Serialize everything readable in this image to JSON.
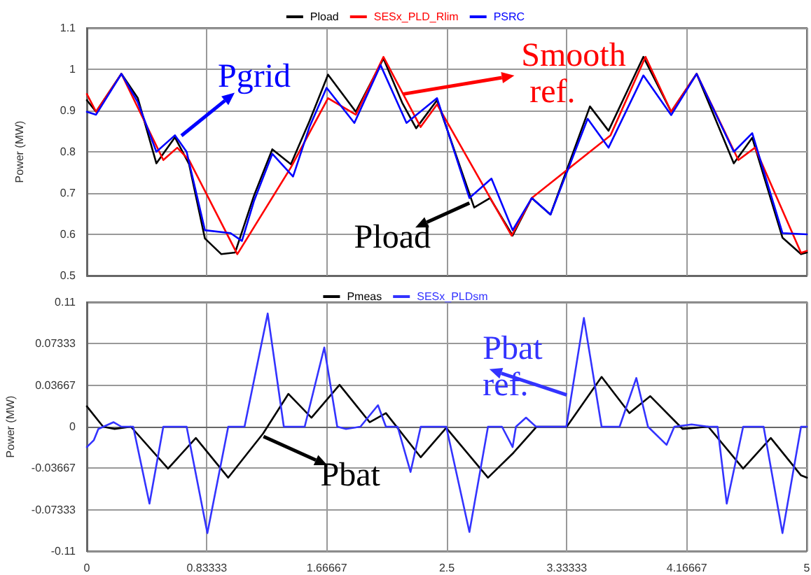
{
  "chart_data": [
    {
      "type": "line",
      "ylabel": "Power (MW)",
      "legend": "top",
      "grid": true,
      "marker": "none",
      "tick_labels": "y",
      "xlim": [
        0,
        5
      ],
      "xticks": [
        0,
        0.83333,
        1.66667,
        2.5,
        3.33333,
        4.16667,
        5
      ],
      "ylim": [
        0.5,
        1.1
      ],
      "yticks": [
        0.5,
        0.6,
        0.7,
        0.8,
        0.9,
        1,
        1.1
      ],
      "annotations": [
        {
          "text": "Pgrid",
          "x": 0.657,
          "y": 0.839
        },
        {
          "text": "Smooth ref.",
          "x": 2.2,
          "y": 0.94
        },
        {
          "text": "Pload",
          "x": 2.657,
          "y": 0.676
        }
      ],
      "series": [
        {
          "name": "Pload",
          "color": "#000000",
          "x": [
            0,
            0.064,
            0.24,
            0.354,
            0.483,
            0.612,
            0.71,
            0.82,
            0.934,
            1.03,
            1.16,
            1.288,
            1.417,
            1.546,
            1.675,
            1.868,
            2.06,
            2.19,
            2.287,
            2.432,
            2.69,
            2.8,
            2.957,
            3.09,
            3.22,
            3.494,
            3.623,
            3.865,
            4.058,
            4.235,
            4.493,
            4.621,
            4.831,
            4.96,
            5
          ],
          "values": [
            0.925,
            0.897,
            0.989,
            0.93,
            0.772,
            0.835,
            0.77,
            0.59,
            0.552,
            0.556,
            0.693,
            0.806,
            0.77,
            0.874,
            0.987,
            0.897,
            1.026,
            0.919,
            0.857,
            0.925,
            0.665,
            0.688,
            0.597,
            0.688,
            0.648,
            0.91,
            0.851,
            1.03,
            0.897,
            0.989,
            0.772,
            0.834,
            0.592,
            0.552,
            0.556
          ]
        },
        {
          "name": "SESx_PLD_Rlim",
          "color": "#ff0000",
          "x": [
            0,
            0.064,
            0.24,
            0.531,
            0.628,
            0.71,
            1.045,
            1.417,
            1.675,
            1.868,
            2.06,
            2.318,
            2.432,
            2.95,
            3.09,
            3.637,
            3.88,
            4.058,
            4.235,
            4.525,
            4.64,
            4.96,
            5
          ],
          "values": [
            0.94,
            0.897,
            0.989,
            0.78,
            0.81,
            0.78,
            0.552,
            0.762,
            0.93,
            0.89,
            1.03,
            0.86,
            0.915,
            0.597,
            0.688,
            0.84,
            1.03,
            0.897,
            0.989,
            0.78,
            0.81,
            0.555,
            0.56
          ]
        },
        {
          "name": "PSRC",
          "color": "#0000ff",
          "x": [
            0,
            0.064,
            0.24,
            0.354,
            0.483,
            0.612,
            0.693,
            0.82,
            0.998,
            1.077,
            1.16,
            1.288,
            1.432,
            1.546,
            1.665,
            1.858,
            2.04,
            2.22,
            2.432,
            2.657,
            2.81,
            2.957,
            3.09,
            3.22,
            3.478,
            3.623,
            3.865,
            4.058,
            4.235,
            4.493,
            4.621,
            4.831,
            5
          ],
          "values": [
            0.897,
            0.89,
            0.989,
            0.92,
            0.8,
            0.84,
            0.8,
            0.61,
            0.603,
            0.584,
            0.68,
            0.795,
            0.74,
            0.86,
            0.955,
            0.87,
            1.01,
            0.87,
            0.93,
            0.688,
            0.735,
            0.61,
            0.688,
            0.648,
            0.88,
            0.81,
            0.985,
            0.889,
            0.989,
            0.8,
            0.845,
            0.603,
            0.6
          ]
        }
      ]
    },
    {
      "type": "line",
      "ylabel": "Power (MW)",
      "legend": "top",
      "grid": true,
      "marker": "none",
      "xlim": [
        0,
        5
      ],
      "xticks": [
        0,
        0.83333,
        1.66667,
        2.5,
        3.33333,
        4.16667,
        5
      ],
      "ylim": [
        -0.11,
        0.11
      ],
      "yticks": [
        -0.11,
        -0.07333,
        -0.03667,
        0,
        0.03667,
        0.07333,
        0.11
      ],
      "annotations": [
        {
          "text": "Pbat",
          "x": 1.227,
          "y": -0.0086
        },
        {
          "text": "Pbat ref.",
          "x": 3.333,
          "y": 0.028
        }
      ],
      "series": [
        {
          "name": "Pmeas",
          "color": "#000000",
          "x": [
            0,
            0.113,
            0.193,
            0.306,
            0.564,
            0.757,
            0.982,
            1.224,
            1.4,
            1.56,
            1.755,
            1.964,
            2.077,
            2.319,
            2.496,
            2.786,
            2.963,
            3.124,
            3.333,
            3.575,
            3.768,
            3.913,
            4.138,
            4.316,
            4.558,
            4.75,
            4.96,
            5
          ],
          "values": [
            0.018,
            0,
            -0.002,
            0,
            -0.037,
            -0.01,
            -0.045,
            -0.006,
            0.029,
            0.008,
            0.037,
            0.004,
            0.012,
            -0.027,
            -0.001,
            -0.045,
            -0.023,
            0,
            0,
            0.044,
            0.012,
            0.027,
            -0.002,
            0,
            -0.037,
            -0.01,
            -0.043,
            -0.045
          ]
        },
        {
          "name": "SESx_PLDsm",
          "color": "#3333ff",
          "x": [
            0,
            0.048,
            0.08,
            0.186,
            0.24,
            0.322,
            0.435,
            0.531,
            0.693,
            0.837,
            0.982,
            1.095,
            1.256,
            1.368,
            1.513,
            1.649,
            1.739,
            1.8,
            1.9,
            2.022,
            2.077,
            2.158,
            2.248,
            2.319,
            2.496,
            2.657,
            2.786,
            2.883,
            2.957,
            2.98,
            3.05,
            3.12,
            3.33,
            3.452,
            3.575,
            3.7,
            3.816,
            3.897,
            4.026,
            4.08,
            4.2,
            4.316,
            4.38,
            4.444,
            4.558,
            4.7,
            4.831,
            4.96,
            5
          ],
          "values": [
            -0.018,
            -0.012,
            -0.002,
            0.004,
            0,
            0,
            -0.068,
            0,
            0,
            -0.094,
            0,
            0,
            0.1,
            0,
            0,
            0.07,
            0,
            -0.002,
            0,
            0.019,
            0,
            0,
            -0.04,
            0,
            0,
            -0.093,
            0,
            0,
            -0.018,
            0,
            0.008,
            0,
            0,
            0.096,
            0,
            0,
            0.043,
            0,
            -0.016,
            0,
            0.002,
            0,
            0,
            -0.068,
            0,
            0,
            -0.094,
            0,
            0
          ]
        }
      ]
    }
  ]
}
